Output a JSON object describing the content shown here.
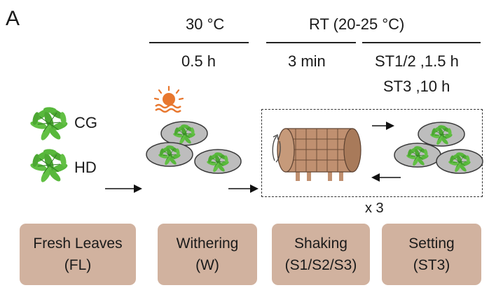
{
  "panel_label": "A",
  "header": {
    "temp_withering": "30 °C",
    "temp_rt": "RT (20-25 °C)",
    "time_withering": "0.5 h",
    "time_shaking": "3 min",
    "time_setting_1": "ST1/2 ,1.5 h",
    "time_setting_2": "ST3 ,10 h"
  },
  "leaf_labels": {
    "cg": "CG",
    "hd": "HD"
  },
  "repeat_label": "x 3",
  "stages": [
    {
      "name": "Fresh Leaves",
      "abbr": "(FL)"
    },
    {
      "name": "Withering",
      "abbr": "(W)"
    },
    {
      "name": "Shaking",
      "abbr": "(S1/S2/S3)"
    },
    {
      "name": "Setting",
      "abbr": "(ST3)"
    }
  ],
  "colors": {
    "stage_box": "#d1b29f",
    "leaf_green": "#58b83c",
    "sun_orange": "#e8772e",
    "drum_brown": "#c09070",
    "tray_gray": "#bdbdbd"
  },
  "icons": [
    "sun-icon",
    "leaf-icon",
    "tray-icon",
    "drum-icon",
    "rotate-icon",
    "arrow-icon"
  ]
}
